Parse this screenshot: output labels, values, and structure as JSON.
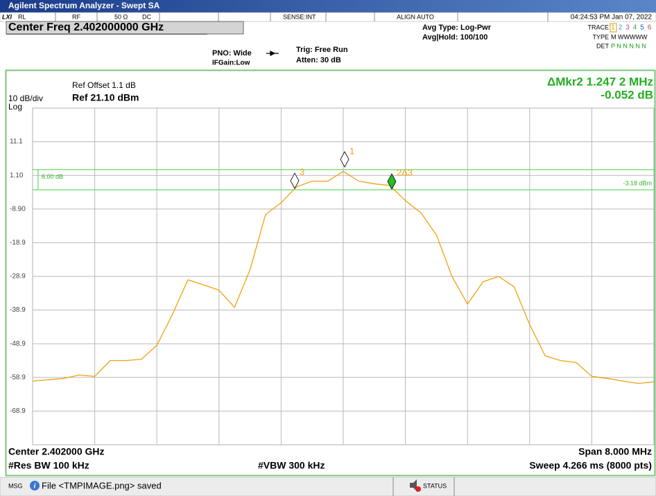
{
  "title_bar": "Agilent Spectrum Analyzer - Swept SA",
  "status_row": {
    "lxi": "LXI",
    "rl": "RL",
    "rf": "RF",
    "impedance": "50 Ω",
    "coupling": "DC",
    "sense": "SENSE:INT",
    "align": "ALIGN AUTO",
    "datetime": "04:24:53 PM Jan 07, 2022"
  },
  "settings": {
    "center_freq": "Center Freq 2.402000000 GHz",
    "pno": "PNO: Wide",
    "ifgain": "IFGain:Low",
    "trig": "Trig: Free Run",
    "atten": "Atten: 30 dB",
    "avg_type": "Avg Type: Log-Pwr",
    "avg_hold": "Avg|Hold: 100/100",
    "trace_label": "TRACE",
    "trace_numbers": [
      "1",
      "2",
      "3",
      "4",
      "5",
      "6"
    ],
    "type_label": "TYPE",
    "type_value": "M WWWWW",
    "det_label": "DET",
    "det_value": "P N N N N N"
  },
  "chart_data": {
    "type": "line",
    "ref_offset": "Ref Offset 1.1 dB",
    "scale": "10 dB/div",
    "ref_level": "Ref 21.10 dBm",
    "scale_type": "Log",
    "marker_readout": "ΔMkr2 1.247 2 MHz",
    "marker_delta": "-0.052 dB",
    "markers": [
      "1",
      "3",
      "2Δ3"
    ],
    "display_line": {
      "value": -3.18,
      "label": "-3.18 dBm"
    },
    "limit_offset": {
      "value": 6,
      "label": "6.00 dB"
    },
    "xlim": [
      2398,
      2406
    ],
    "ylim": [
      -78.9,
      21.1
    ],
    "yticks": [
      11.1,
      {
        "value": 1.1,
        "label": "1.10"
      },
      {
        "value": -8.9,
        "label": "-8.90"
      },
      -18.9,
      -28.9,
      -38.9,
      -48.9,
      -58.9,
      -68.9
    ],
    "grid": true,
    "series": [
      {
        "color": "#f0a010",
        "x": [
          2398,
          2398.2,
          2398.4,
          2398.6,
          2398.8,
          2399,
          2399.2,
          2399.4,
          2399.6,
          2399.8,
          2400,
          2400.2,
          2400.4,
          2400.6,
          2400.8,
          2401,
          2401.2,
          2401.4,
          2401.6,
          2401.8,
          2402,
          2402.2,
          2402.4,
          2402.6,
          2402.8,
          2403,
          2403.2,
          2403.4,
          2403.6,
          2403.8,
          2404,
          2404.2,
          2404.4,
          2404.6,
          2404.8,
          2405,
          2405.2,
          2405.4,
          2405.6,
          2405.8,
          2406
        ],
        "values": [
          -60.0,
          -59.6,
          -59.2,
          -58.2,
          -58.6,
          -53.9,
          -53.9,
          -53.5,
          -49.4,
          -40.2,
          -29.9,
          -31.4,
          -33.0,
          -38.1,
          -26.9,
          -10.5,
          -7.0,
          -2.3,
          -0.6,
          -0.6,
          2.3,
          -0.6,
          -1.4,
          -1.9,
          -6.4,
          -10.0,
          -16.6,
          -28.9,
          -37.1,
          -30.5,
          -28.9,
          -32.0,
          -43.2,
          -52.5,
          -53.9,
          -54.5,
          -58.6,
          -59.2,
          -60.0,
          -60.7,
          -60.2
        ]
      }
    ]
  },
  "footer": {
    "center": "Center 2.402000 GHz",
    "span": "Span 8.000 MHz",
    "rbw": "#Res BW 100 kHz",
    "vbw": "#VBW 300 kHz",
    "sweep": "Sweep  4.266 ms (8000 pts)"
  },
  "message_bar": {
    "msg": "MSG",
    "message": "File <TMPIMAGE.png> saved",
    "status": "STATUS"
  }
}
